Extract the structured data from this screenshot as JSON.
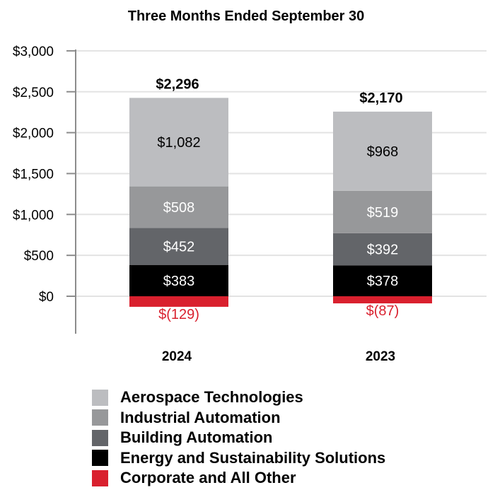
{
  "chart_data": {
    "type": "bar",
    "stacked": true,
    "title": "Three Months Ended September 30",
    "xlabel": "",
    "ylabel": "",
    "ylim": [
      -500,
      3000
    ],
    "yticks": [
      0,
      500,
      1000,
      1500,
      2000,
      2500,
      3000
    ],
    "ytick_labels": [
      "$0",
      "$500",
      "$1,000",
      "$1,500",
      "$2,000",
      "$2,500",
      "$3,000"
    ],
    "grid": true,
    "legend_position": "bottom",
    "categories": [
      "2024",
      "2023"
    ],
    "totals": [
      2296,
      2170
    ],
    "total_labels": [
      "$2,296",
      "$2,170"
    ],
    "series": [
      {
        "name": "Corporate and All Other",
        "color": "#d9202e",
        "label_color": "#d9202e",
        "values": [
          -129,
          -87
        ],
        "labels": [
          "$(129)",
          "$(87)"
        ]
      },
      {
        "name": "Energy and Sustainability Solutions",
        "color": "#000000",
        "label_color": "#ffffff",
        "values": [
          383,
          378
        ],
        "labels": [
          "$383",
          "$378"
        ]
      },
      {
        "name": "Building Automation",
        "color": "#636569",
        "label_color": "#ffffff",
        "values": [
          452,
          392
        ],
        "labels": [
          "$452",
          "$392"
        ]
      },
      {
        "name": "Industrial Automation",
        "color": "#97989a",
        "label_color": "#ffffff",
        "values": [
          508,
          519
        ],
        "labels": [
          "$508",
          "$519"
        ]
      },
      {
        "name": "Aerospace Technologies",
        "color": "#bcbdc0",
        "label_color": "#000000",
        "values": [
          1082,
          968
        ],
        "labels": [
          "$1,082",
          "$968"
        ]
      }
    ],
    "legend_order": [
      "Aerospace Technologies",
      "Industrial Automation",
      "Building Automation",
      "Energy and Sustainability Solutions",
      "Corporate and All Other"
    ]
  }
}
